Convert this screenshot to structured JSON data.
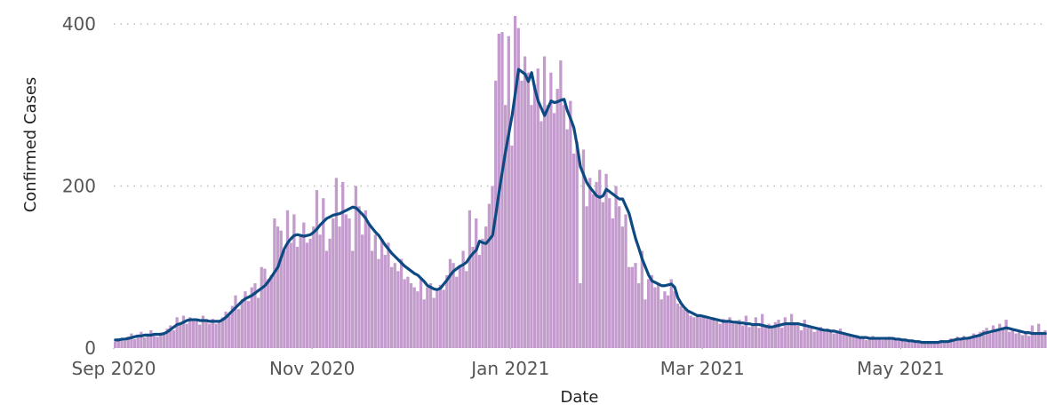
{
  "chart_data": {
    "type": "bar",
    "x_label": "Date",
    "y_label": "Confirmed Cases",
    "xlim": [
      0,
      287
    ],
    "xticks": [
      {
        "value": 0,
        "label": "Sep 2020"
      },
      {
        "value": 61,
        "label": "Nov 2020"
      },
      {
        "value": 122,
        "label": "Jan 2021"
      },
      {
        "value": 181,
        "label": "Mar 2021"
      },
      {
        "value": 242,
        "label": "May 2021"
      }
    ],
    "ylim": [
      0,
      410
    ],
    "yticks": [
      0,
      200,
      400
    ],
    "grid": true,
    "x": [
      0,
      1,
      2,
      3,
      4,
      5,
      6,
      7,
      8,
      9,
      10,
      11,
      12,
      13,
      14,
      15,
      16,
      17,
      18,
      19,
      20,
      21,
      22,
      23,
      24,
      25,
      26,
      27,
      28,
      29,
      30,
      31,
      32,
      33,
      34,
      35,
      36,
      37,
      38,
      39,
      40,
      41,
      42,
      43,
      44,
      45,
      46,
      47,
      48,
      49,
      50,
      51,
      52,
      53,
      54,
      55,
      56,
      57,
      58,
      59,
      60,
      61,
      62,
      63,
      64,
      65,
      66,
      67,
      68,
      69,
      70,
      71,
      72,
      73,
      74,
      75,
      76,
      77,
      78,
      79,
      80,
      81,
      82,
      83,
      84,
      85,
      86,
      87,
      88,
      89,
      90,
      91,
      92,
      93,
      94,
      95,
      96,
      97,
      98,
      99,
      100,
      101,
      102,
      103,
      104,
      105,
      106,
      107,
      108,
      109,
      110,
      111,
      112,
      113,
      114,
      115,
      116,
      117,
      118,
      119,
      120,
      121,
      122,
      123,
      124,
      125,
      126,
      127,
      128,
      129,
      130,
      131,
      132,
      133,
      134,
      135,
      136,
      137,
      138,
      139,
      140,
      141,
      142,
      143,
      144,
      145,
      146,
      147,
      148,
      149,
      150,
      151,
      152,
      153,
      154,
      155,
      156,
      157,
      158,
      159,
      160,
      161,
      162,
      163,
      164,
      165,
      166,
      167,
      168,
      169,
      170,
      171,
      172,
      173,
      174,
      175,
      176,
      177,
      178,
      179,
      180,
      181,
      182,
      183,
      184,
      185,
      186,
      187,
      188,
      189,
      190,
      191,
      192,
      193,
      194,
      195,
      196,
      197,
      198,
      199,
      200,
      201,
      202,
      203,
      204,
      205,
      206,
      207,
      208,
      209,
      210,
      211,
      212,
      213,
      214,
      215,
      216,
      217,
      218,
      219,
      220,
      221,
      222,
      223,
      224,
      225,
      226,
      227,
      228,
      229,
      230,
      231,
      232,
      233,
      234,
      235,
      236,
      237,
      238,
      239,
      240,
      241,
      242,
      243,
      244,
      245,
      246,
      247,
      248,
      249,
      250,
      251,
      252,
      253,
      254,
      255,
      256,
      257,
      258,
      259,
      260,
      261,
      262,
      263,
      264,
      265,
      266,
      267,
      268,
      269,
      270,
      271,
      272,
      273,
      274,
      275,
      276,
      277,
      278,
      279,
      280,
      281,
      282,
      283,
      284,
      285,
      286
    ],
    "series": [
      {
        "type": "bar",
        "color": "#c39bcc",
        "values": [
          8,
          12,
          10,
          9,
          14,
          18,
          11,
          15,
          20,
          13,
          17,
          22,
          15,
          14,
          19,
          18,
          24,
          28,
          22,
          38,
          32,
          40,
          30,
          38,
          36,
          34,
          29,
          40,
          33,
          30,
          36,
          30,
          32,
          38,
          45,
          40,
          52,
          65,
          48,
          60,
          70,
          58,
          75,
          80,
          62,
          100,
          98,
          85,
          90,
          160,
          150,
          145,
          120,
          170,
          130,
          165,
          125,
          140,
          155,
          130,
          135,
          150,
          195,
          140,
          185,
          120,
          135,
          160,
          210,
          150,
          205,
          165,
          160,
          120,
          200,
          175,
          140,
          170,
          155,
          120,
          140,
          110,
          135,
          115,
          130,
          100,
          105,
          95,
          110,
          85,
          88,
          80,
          75,
          70,
          85,
          60,
          75,
          80,
          62,
          70,
          78,
          72,
          90,
          110,
          105,
          88,
          100,
          120,
          95,
          170,
          125,
          160,
          115,
          135,
          150,
          178,
          200,
          330,
          388,
          390,
          300,
          385,
          250,
          410,
          395,
          330,
          360,
          340,
          300,
          325,
          345,
          280,
          360,
          300,
          340,
          290,
          320,
          355,
          300,
          270,
          305,
          240,
          255,
          80,
          245,
          175,
          210,
          190,
          205,
          220,
          180,
          215,
          185,
          160,
          200,
          175,
          150,
          165,
          100,
          100,
          105,
          80,
          120,
          60,
          85,
          90,
          75,
          80,
          60,
          70,
          65,
          85,
          70,
          55,
          52,
          48,
          45,
          40,
          38,
          42,
          38,
          40,
          36,
          35,
          38,
          33,
          30,
          36,
          34,
          38,
          30,
          32,
          35,
          28,
          40,
          26,
          30,
          38,
          25,
          42,
          28,
          30,
          24,
          32,
          35,
          25,
          38,
          28,
          42,
          30,
          28,
          22,
          35,
          25,
          24,
          20,
          22,
          26,
          20,
          24,
          22,
          18,
          20,
          24,
          18,
          16,
          15,
          14,
          16,
          12,
          14,
          10,
          12,
          15,
          11,
          13,
          10,
          12,
          14,
          11,
          12,
          10,
          9,
          11,
          8,
          10,
          7,
          9,
          6,
          8,
          6,
          7,
          8,
          6,
          10,
          9,
          8,
          12,
          10,
          14,
          12,
          15,
          13,
          14,
          18,
          15,
          20,
          22,
          25,
          18,
          28,
          22,
          30,
          25,
          35,
          20,
          24,
          18,
          22,
          16,
          20,
          15,
          28,
          18,
          30,
          20,
          22
        ]
      },
      {
        "type": "line",
        "color": "#0d4a82",
        "values": [
          10,
          10,
          11,
          11,
          12,
          13,
          14,
          15,
          15,
          16,
          16,
          16,
          17,
          17,
          17,
          18,
          20,
          23,
          26,
          29,
          30,
          32,
          34,
          35,
          35,
          35,
          34,
          34,
          34,
          33,
          33,
          33,
          33,
          35,
          38,
          42,
          46,
          50,
          54,
          58,
          61,
          63,
          65,
          68,
          71,
          74,
          77,
          82,
          88,
          94,
          100,
          112,
          123,
          130,
          135,
          139,
          140,
          139,
          138,
          139,
          140,
          143,
          147,
          152,
          156,
          160,
          162,
          164,
          165,
          166,
          168,
          170,
          172,
          174,
          173,
          169,
          165,
          160,
          153,
          148,
          143,
          139,
          133,
          127,
          122,
          117,
          113,
          109,
          105,
          101,
          98,
          95,
          92,
          90,
          86,
          82,
          77,
          75,
          73,
          72,
          74,
          79,
          84,
          90,
          95,
          98,
          101,
          103,
          106,
          112,
          117,
          121,
          132,
          130,
          129,
          134,
          139,
          165,
          193,
          218,
          243,
          265,
          287,
          315,
          344,
          341,
          338,
          329,
          340,
          320,
          305,
          296,
          287,
          296,
          305,
          303,
          304,
          306,
          307,
          293,
          283,
          272,
          250,
          224,
          214,
          204,
          198,
          193,
          188,
          186,
          188,
          196,
          193,
          190,
          187,
          184,
          184,
          175,
          166,
          150,
          135,
          123,
          110,
          100,
          90,
          83,
          81,
          79,
          77,
          77,
          78,
          79,
          75,
          62,
          55,
          50,
          46,
          44,
          42,
          40,
          40,
          39,
          38,
          37,
          36,
          35,
          34,
          33,
          33,
          33,
          32,
          32,
          31,
          31,
          30,
          30,
          29,
          29,
          29,
          28,
          27,
          26,
          26,
          27,
          28,
          29,
          30,
          30,
          30,
          30,
          30,
          29,
          28,
          27,
          26,
          25,
          24,
          23,
          22,
          22,
          21,
          21,
          20,
          19,
          18,
          17,
          16,
          15,
          14,
          13,
          13,
          13,
          12,
          12,
          12,
          12,
          12,
          12,
          12,
          12,
          11,
          11,
          10,
          10,
          9,
          9,
          8,
          8,
          7,
          7,
          7,
          7,
          7,
          7,
          8,
          8,
          8,
          9,
          10,
          11,
          11,
          12,
          12,
          13,
          14,
          15,
          16,
          18,
          19,
          20,
          21,
          22,
          23,
          24,
          25,
          24,
          23,
          22,
          21,
          20,
          19,
          19,
          18,
          18,
          18,
          18,
          18
        ]
      }
    ]
  }
}
